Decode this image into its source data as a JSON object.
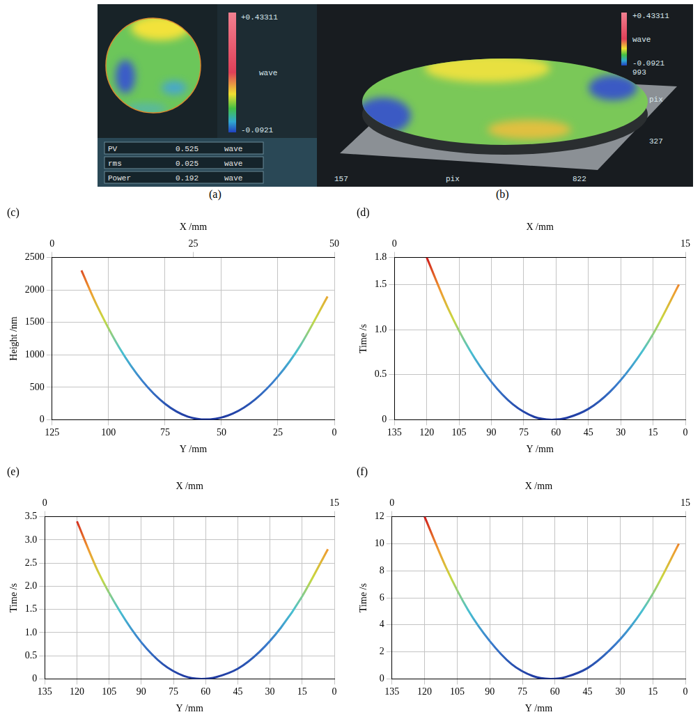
{
  "screenshot": {
    "a": {
      "caption": "(a)",
      "colorbar": {
        "max": {
          "value": 0.43311,
          "label": "+0.43311"
        },
        "unit": "wave",
        "min": -0.0921
      },
      "stats": [
        {
          "name": "PV",
          "value": 0.525,
          "unit": "wave"
        },
        {
          "name": "rms",
          "value": 0.025,
          "unit": "wave"
        },
        {
          "name": "Power",
          "value": 0.192,
          "unit": "wave"
        }
      ]
    },
    "b": {
      "caption": "(b)",
      "colorbar": {
        "max": {
          "value": 0.43311,
          "label": "+0.43311"
        },
        "unit": "wave",
        "min": -0.0921,
        "count": 993
      },
      "x_axis": {
        "start": 157,
        "end": 822,
        "label": "pix"
      },
      "y_axis": {
        "end": 327,
        "label": "pix"
      }
    }
  },
  "chart_data": [
    {
      "type": "line",
      "title": "(c)",
      "x": [
        3,
        15,
        25,
        35,
        45,
        55,
        65,
        75,
        85,
        95,
        105,
        112
      ],
      "values": [
        1900,
        1147,
        666,
        315,
        94,
        5,
        49,
        246,
        596,
        1097,
        1751,
        2300
      ],
      "xlabel": "Y /mm",
      "ylabel": "Height /nm",
      "x2label": "X /mm",
      "xlim": [
        125,
        0
      ],
      "xticks": [
        125,
        100,
        75,
        50,
        25,
        0
      ],
      "ylim": [
        0,
        2500
      ],
      "yticks": [
        0,
        500,
        1000,
        1500,
        2000,
        2500
      ],
      "x2lim": [
        0,
        50
      ],
      "x2ticks": [
        0,
        25,
        50
      ],
      "grid": true
    },
    {
      "type": "line",
      "title": "(d)",
      "x": [
        3,
        15,
        25,
        35,
        45,
        55,
        62,
        70,
        80,
        90,
        100,
        110,
        120
      ],
      "values": [
        1.5,
        0.95,
        0.59,
        0.31,
        0.12,
        0.02,
        0,
        0.03,
        0.17,
        0.42,
        0.77,
        1.23,
        1.8
      ],
      "xlabel": "Y /mm",
      "ylabel": "Time /s",
      "x2label": "X /mm",
      "xlim": [
        135,
        0
      ],
      "xticks": [
        135,
        120,
        105,
        90,
        75,
        60,
        45,
        30,
        15,
        0
      ],
      "ylim": [
        0,
        1.8
      ],
      "yticks": [
        0,
        0.5,
        {
          "value": 1,
          "label": "1.0"
        },
        1.5,
        1.8
      ],
      "x2lim": [
        0,
        15
      ],
      "x2ticks": [
        0,
        15
      ],
      "grid": true
    },
    {
      "type": "line",
      "title": "(e)",
      "x": [
        3,
        15,
        25,
        35,
        45,
        55,
        62,
        70,
        80,
        90,
        100,
        110,
        120
      ],
      "values": [
        2.8,
        1.78,
        1.1,
        0.58,
        0.22,
        0.04,
        0,
        0.06,
        0.32,
        0.79,
        1.46,
        2.3,
        3.4
      ],
      "xlabel": "Y /mm",
      "ylabel": "Time /s",
      "x2label": "X /mm",
      "xlim": [
        135,
        0
      ],
      "xticks": [
        135,
        120,
        105,
        90,
        75,
        60,
        45,
        30,
        15,
        0
      ],
      "ylim": [
        0,
        3.5
      ],
      "yticks": [
        0,
        0.5,
        {
          "value": 1,
          "label": "1.0"
        },
        1.5,
        {
          "value": 2,
          "label": "2.0"
        },
        2.5,
        {
          "value": 3,
          "label": "3.0"
        },
        3.5
      ],
      "x2lim": [
        0,
        15
      ],
      "x2ticks": [
        0,
        15
      ],
      "grid": true
    },
    {
      "type": "line",
      "title": "(f)",
      "x": [
        3,
        15,
        25,
        35,
        45,
        55,
        62,
        70,
        80,
        90,
        100,
        110,
        120
      ],
      "values": [
        10,
        6.3,
        3.9,
        2.1,
        0.8,
        0.14,
        0,
        0.2,
        1.1,
        2.8,
        5.1,
        8.2,
        12
      ],
      "xlabel": "Y /mm",
      "ylabel": "Time /s",
      "x2label": "X /mm",
      "xlim": [
        135,
        0
      ],
      "xticks": [
        135,
        120,
        105,
        90,
        75,
        60,
        45,
        30,
        15,
        0
      ],
      "ylim": [
        0,
        12
      ],
      "yticks": [
        0,
        2,
        4,
        6,
        8,
        10,
        12
      ],
      "x2lim": [
        0,
        15
      ],
      "x2ticks": [
        0,
        15
      ],
      "grid": true
    }
  ]
}
